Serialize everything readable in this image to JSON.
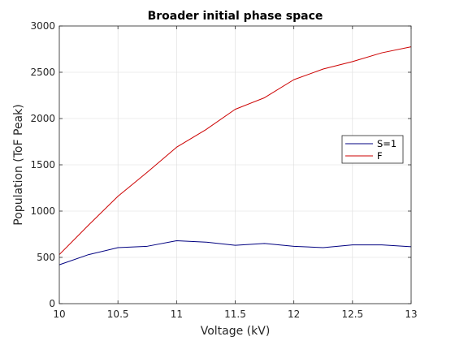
{
  "chart_data": {
    "type": "line",
    "title": "Broader initial phase space",
    "xlabel": "Voltage (kV)",
    "ylabel": "Population (ToF Peak)",
    "xlim": [
      10,
      13
    ],
    "ylim": [
      0,
      3000
    ],
    "xticks": [
      10,
      10.5,
      11,
      11.5,
      12,
      12.5,
      13
    ],
    "xtick_labels": [
      "10",
      "10.5",
      "11",
      "11.5",
      "12",
      "12.5",
      "13"
    ],
    "yticks": [
      0,
      500,
      1000,
      1500,
      2000,
      2500,
      3000
    ],
    "ytick_labels": [
      "0",
      "500",
      "1000",
      "1500",
      "2000",
      "2500",
      "3000"
    ],
    "grid": true,
    "legend_position": "right",
    "x": [
      10,
      10.25,
      10.5,
      10.75,
      11,
      11.25,
      11.5,
      11.75,
      12,
      12.25,
      12.5,
      12.75,
      13
    ],
    "series": [
      {
        "name": "S=1",
        "color": "#000080",
        "values": [
          420,
          530,
          605,
          620,
          680,
          665,
          630,
          650,
          620,
          605,
          635,
          635,
          615
        ]
      },
      {
        "name": "F",
        "color": "#cc0000",
        "values": [
          530,
          850,
          1160,
          1420,
          1690,
          1880,
          2100,
          2225,
          2420,
          2535,
          2615,
          2710,
          2775
        ]
      }
    ]
  }
}
